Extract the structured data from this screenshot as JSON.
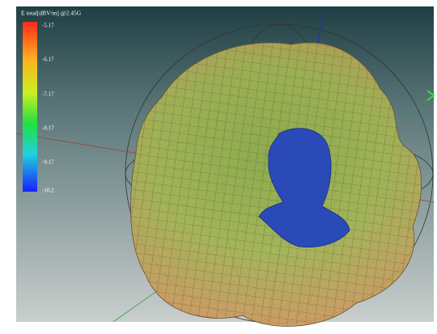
{
  "legend": {
    "title": "E total[dBV/m] @2.45G",
    "labels": [
      "-5.17",
      "-6.17",
      "-7.17",
      "-8.17",
      "-9.17",
      "-10.2"
    ]
  }
}
